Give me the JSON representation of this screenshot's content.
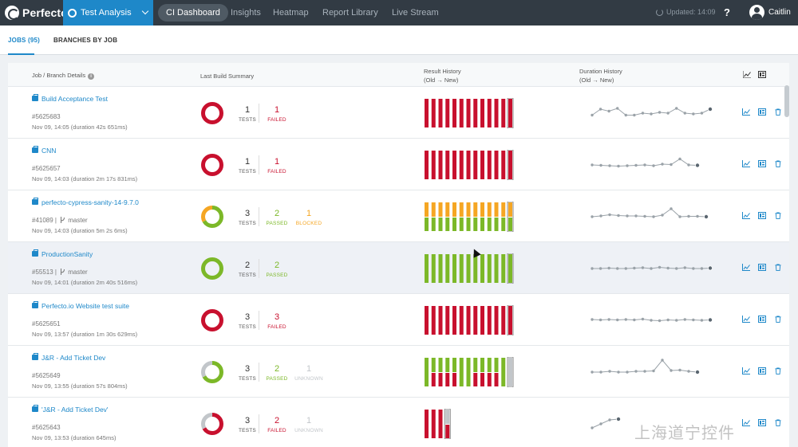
{
  "app": {
    "brand": "Perfecto",
    "module": "Test Analysis"
  },
  "nav": [
    "CI Dashboard",
    "Insights",
    "Heatmap",
    "Report Library",
    "Live Stream"
  ],
  "header_right": {
    "updated": "Updated: 14:09",
    "help": "?",
    "user": "Caitlin"
  },
  "subtabs": [
    "JOBS (95)",
    "BRANCHES BY JOB"
  ],
  "columns": {
    "job": "Job / Branch Details",
    "summary": "Last Build Summary",
    "result": "Result History",
    "result_sub": "(Old → New)",
    "duration": "Duration History",
    "duration_sub": "(Old → New)"
  },
  "colors": {
    "failed": "#c8102e",
    "passed": "#7cb828",
    "blocked": "#f5a623",
    "unknown": "#c2c6ca",
    "link": "#1e88c9",
    "spark": "#9aa2a8"
  },
  "icons": [
    "briefcase-icon",
    "branch-icon",
    "trend-icon",
    "report-icon",
    "trash-icon",
    "info-icon",
    "refresh-icon"
  ],
  "rows": [
    {
      "name": "Build Acceptance Test",
      "id": "#5625683",
      "branch": "",
      "date": "Nov 09, 14:05 (duration 42s 651ms)",
      "total": "1",
      "total_label": "TESTS",
      "stats": [
        {
          "value": "1",
          "label": "FAILED",
          "kind": "failed"
        }
      ],
      "donut": [
        {
          "kind": "failed",
          "value": 1
        }
      ],
      "history": [
        [
          "f"
        ],
        [
          "f"
        ],
        [
          "f"
        ],
        [
          "f"
        ],
        [
          "f"
        ],
        [
          "f"
        ],
        [
          "f"
        ],
        [
          "f"
        ],
        [
          "f"
        ],
        [
          "f"
        ],
        [
          "f"
        ],
        [
          "f"
        ],
        [
          "f"
        ]
      ],
      "duration": [
        45,
        60,
        55,
        62,
        45,
        45,
        50,
        48,
        52,
        50,
        62,
        50,
        48,
        50,
        60
      ]
    },
    {
      "name": "CNN",
      "id": "#5625657",
      "branch": "",
      "date": "Nov 09, 14:03 (duration 2m 17s 831ms)",
      "total": "1",
      "total_label": "TESTS",
      "stats": [
        {
          "value": "1",
          "label": "FAILED",
          "kind": "failed"
        }
      ],
      "donut": [
        {
          "kind": "failed",
          "value": 1
        }
      ],
      "history": [
        [
          "f"
        ],
        [
          "f"
        ],
        [
          "f"
        ],
        [
          "f"
        ],
        [
          "f"
        ],
        [
          "f"
        ],
        [
          "f"
        ],
        [
          "f"
        ],
        [
          "f"
        ],
        [
          "f"
        ],
        [
          "f"
        ],
        [
          "f"
        ],
        [
          "f"
        ]
      ],
      "duration": [
        50,
        49,
        48,
        47,
        48,
        49,
        50,
        48,
        52,
        51,
        65,
        50,
        49
      ]
    },
    {
      "name": "perfecto-cypress-sanity-14-9.7.0",
      "id": "#41089",
      "branch": "master",
      "date": "Nov 09, 14:03 (duration 5m 2s 6ms)",
      "total": "3",
      "total_label": "TESTS",
      "stats": [
        {
          "value": "2",
          "label": "PASSED",
          "kind": "passed"
        },
        {
          "value": "1",
          "label": "BLOCKED",
          "kind": "blocked"
        }
      ],
      "donut": [
        {
          "kind": "passed",
          "value": 2
        },
        {
          "kind": "blocked",
          "value": 1
        }
      ],
      "history": [
        [
          "b",
          "p"
        ],
        [
          "b",
          "p"
        ],
        [
          "b",
          "p"
        ],
        [
          "b",
          "p"
        ],
        [
          "b",
          "p"
        ],
        [
          "b",
          "p"
        ],
        [
          "b",
          "p"
        ],
        [
          "b",
          "p"
        ],
        [
          "b",
          "p"
        ],
        [
          "b",
          "p"
        ],
        [
          "b",
          "p"
        ],
        [
          "b",
          "p"
        ],
        [
          "b",
          "p"
        ]
      ],
      "duration": [
        50,
        52,
        55,
        53,
        52,
        52,
        51,
        50,
        54,
        70,
        50,
        51,
        51,
        50
      ]
    },
    {
      "name": "ProductionSanity",
      "id": "#55513",
      "branch": "master",
      "date": "Nov 09, 14:01 (duration 2m 40s 516ms)",
      "total": "2",
      "total_label": "TESTS",
      "stats": [
        {
          "value": "2",
          "label": "PASSED",
          "kind": "passed"
        }
      ],
      "donut": [
        {
          "kind": "passed",
          "value": 2
        }
      ],
      "history": [
        [
          "p"
        ],
        [
          "p"
        ],
        [
          "p"
        ],
        [
          "p"
        ],
        [
          "p"
        ],
        [
          "p"
        ],
        [
          "p"
        ],
        [
          "p"
        ],
        [
          "p"
        ],
        [
          "p"
        ],
        [
          "p"
        ],
        [
          "p"
        ],
        [
          "p"
        ]
      ],
      "duration": [
        50,
        50,
        51,
        50,
        50,
        51,
        52,
        50,
        53,
        51,
        50,
        52,
        50,
        50,
        51
      ]
    },
    {
      "name": "Perfecto.io Website test suite",
      "id": "#5625651",
      "branch": "",
      "date": "Nov 09, 13:57 (duration 1m 30s 629ms)",
      "total": "3",
      "total_label": "TESTS",
      "stats": [
        {
          "value": "3",
          "label": "FAILED",
          "kind": "failed"
        }
      ],
      "donut": [
        {
          "kind": "failed",
          "value": 3
        }
      ],
      "history": [
        [
          "f"
        ],
        [
          "f"
        ],
        [
          "f"
        ],
        [
          "f"
        ],
        [
          "f"
        ],
        [
          "f"
        ],
        [
          "f"
        ],
        [
          "f"
        ],
        [
          "f"
        ],
        [
          "f"
        ],
        [
          "f"
        ],
        [
          "f"
        ],
        [
          "f"
        ]
      ],
      "duration": [
        52,
        51,
        52,
        51,
        52,
        51,
        53,
        50,
        49,
        51,
        50,
        52,
        51,
        50,
        51
      ]
    },
    {
      "name": "J&R - Add Ticket Dev",
      "id": "#5625649",
      "branch": "",
      "date": "Nov 09, 13:55 (duration 57s 804ms)",
      "total": "3",
      "total_label": "TESTS",
      "stats": [
        {
          "value": "2",
          "label": "PASSED",
          "kind": "passed"
        },
        {
          "value": "1",
          "label": "UNKNOWN",
          "kind": "unknown"
        }
      ],
      "donut": [
        {
          "kind": "passed",
          "value": 2
        },
        {
          "kind": "unknown",
          "value": 1
        }
      ],
      "history": [
        [
          "p"
        ],
        [
          "p",
          "f"
        ],
        [
          "p",
          "f"
        ],
        [
          "p",
          "f"
        ],
        [
          "p",
          "f"
        ],
        [
          "p"
        ],
        [
          "p"
        ],
        [
          "p",
          "f"
        ],
        [
          "p",
          "f"
        ],
        [
          "p",
          "f"
        ],
        [
          "p",
          "f"
        ],
        [
          "p"
        ],
        [
          "u"
        ]
      ],
      "duration": [
        50,
        50,
        52,
        50,
        50,
        52,
        52,
        53,
        80,
        54,
        55,
        52,
        50
      ]
    },
    {
      "name": "'J&R - Add Ticket Dev'",
      "id": "#5625643",
      "branch": "",
      "date": "Nov 09, 13:53 (duration 645ms)",
      "total": "3",
      "total_label": "TESTS",
      "stats": [
        {
          "value": "2",
          "label": "FAILED",
          "kind": "failed"
        },
        {
          "value": "1",
          "label": "UNKNOWN",
          "kind": "unknown"
        }
      ],
      "donut": [
        {
          "kind": "failed",
          "value": 2
        },
        {
          "kind": "unknown",
          "value": 1
        }
      ],
      "history": [
        [
          "f"
        ],
        [
          "f"
        ],
        [
          "f"
        ],
        [
          "u",
          "f"
        ]
      ],
      "duration": [
        40,
        50,
        60,
        62
      ]
    }
  ],
  "watermark": "上海道宁控件"
}
